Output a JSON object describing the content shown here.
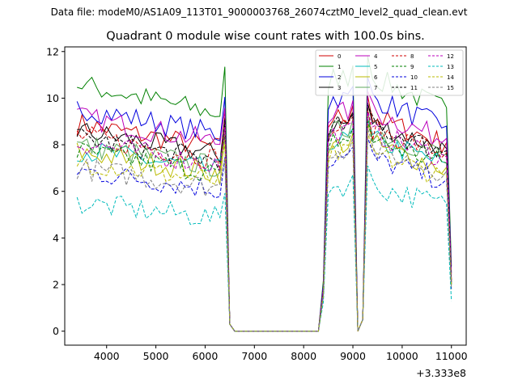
{
  "chart_data": {
    "type": "line",
    "suptitle": "Data file: modeM0/AS1A09_113T01_9000003768_26074cztM0_level2_quad_clean.evt",
    "title": "Quadrant 0 module wise count rates with 100.0s bins.",
    "xlabel": "",
    "ylabel": "",
    "x_offset_label": "+3.333e8",
    "xlim": [
      3150,
      11300
    ],
    "ylim": [
      -0.6,
      12.2
    ],
    "x_ticks": [
      4000,
      5000,
      6000,
      7000,
      8000,
      9000,
      10000,
      11000
    ],
    "x_tick_labels": [
      "4000",
      "5000",
      "6000",
      "7000",
      "8000",
      "9000",
      "10000",
      "11000"
    ],
    "y_ticks": [
      0,
      2,
      4,
      6,
      8,
      10,
      12
    ],
    "y_tick_labels": [
      "0",
      "2",
      "4",
      "6",
      "8",
      "10",
      "12"
    ],
    "legend_position": "top-right",
    "legend_columns": 4,
    "bin_start": 3400,
    "bin_width": 100,
    "gap_values": [
      0.3,
      0.0,
      0.0,
      0.0,
      0.0,
      0.0,
      0.0,
      0.0,
      0.0,
      0.0,
      0.0,
      0.0,
      0.0,
      0.0,
      0.0,
      0.0,
      0.0,
      0.0,
      0.0
    ],
    "dip_values": [
      0.0,
      0.5
    ],
    "series": [
      {
        "name": "0",
        "color": "#d00000",
        "dash": "solid",
        "level1": 8.9,
        "level2": 9.2,
        "tail": 2.2
      },
      {
        "name": "1",
        "color": "#008000",
        "dash": "solid",
        "level1": 10.6,
        "level2": 10.9,
        "tail": 2.8
      },
      {
        "name": "2",
        "color": "#0000dd",
        "dash": "solid",
        "level1": 9.6,
        "level2": 10.0,
        "tail": 2.5
      },
      {
        "name": "3",
        "color": "#000000",
        "dash": "solid",
        "level1": 8.6,
        "level2": 8.9,
        "tail": 2.2
      },
      {
        "name": "4",
        "color": "#bb00bb",
        "dash": "solid",
        "level1": 9.2,
        "level2": 9.4,
        "tail": 2.4
      },
      {
        "name": "5",
        "color": "#00bbbb",
        "dash": "solid",
        "level1": 7.8,
        "level2": 8.2,
        "tail": 2.0
      },
      {
        "name": "6",
        "color": "#bbbb00",
        "dash": "solid",
        "level1": 7.7,
        "level2": 8.0,
        "tail": 2.0
      },
      {
        "name": "7",
        "color": "#5faa5f",
        "dash": "solid",
        "level1": 8.0,
        "level2": 8.6,
        "tail": 2.1
      },
      {
        "name": "8",
        "color": "#d00000",
        "dash": "dashed",
        "level1": 8.4,
        "level2": 8.7,
        "tail": 2.1
      },
      {
        "name": "9",
        "color": "#008000",
        "dash": "dashed",
        "level1": 7.7,
        "level2": 8.2,
        "tail": 2.0
      },
      {
        "name": "10",
        "color": "#0000dd",
        "dash": "dashed",
        "level1": 6.9,
        "level2": 7.4,
        "tail": 1.8
      },
      {
        "name": "11",
        "color": "#000000",
        "dash": "dashed",
        "level1": 8.3,
        "level2": 8.8,
        "tail": 2.1
      },
      {
        "name": "12",
        "color": "#bb00bb",
        "dash": "dashed",
        "level1": 8.1,
        "level2": 8.5,
        "tail": 2.1
      },
      {
        "name": "13",
        "color": "#00bbbb",
        "dash": "dashed",
        "level1": 5.5,
        "level2": 6.2,
        "tail": 1.3
      },
      {
        "name": "14",
        "color": "#bbbb00",
        "dash": "dashed",
        "level1": 7.3,
        "level2": 7.6,
        "tail": 1.9
      },
      {
        "name": "15",
        "color": "#808080",
        "dash": "dashed",
        "level1": 7.0,
        "level2": 7.8,
        "tail": 1.8
      }
    ]
  }
}
